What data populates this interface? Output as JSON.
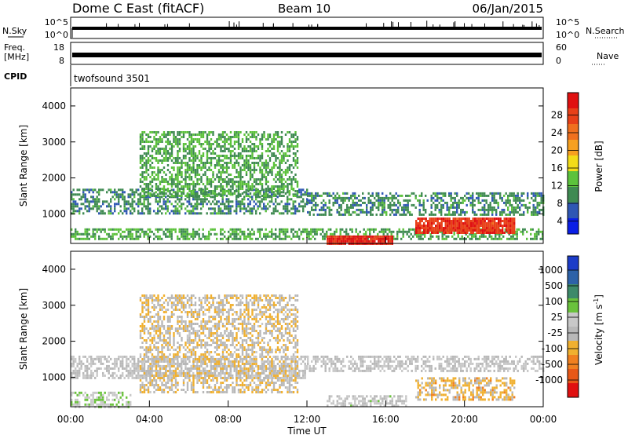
{
  "header": {
    "title": "Dome C East (fitACF)",
    "beam": "Beam 10",
    "date": "06/Jan/2015"
  },
  "noise_panel": {
    "left_label": "N.Sky",
    "left_ticks": [
      "10^5",
      "10^0"
    ],
    "right_label": "N.Search",
    "right_ticks": [
      "10^5",
      "10^0"
    ]
  },
  "freq_panel": {
    "left_label_1": "Freq.",
    "left_label_2": "[MHz]",
    "left_ticks": [
      "18",
      "8"
    ],
    "right_label": "Nave",
    "right_ticks": [
      "60",
      "0"
    ]
  },
  "cpid": {
    "label": "CPID",
    "value": "twofsound 3501"
  },
  "x_axis": {
    "label": "Time UT",
    "ticks": [
      "00:00",
      "04:00",
      "08:00",
      "12:00",
      "16:00",
      "20:00",
      "00:00"
    ]
  },
  "colors": {
    "power_scale": [
      "#0a1ee6",
      "#2f57b4",
      "#3f8a52",
      "#5cc23c",
      "#f2dc18",
      "#f6a020",
      "#f0701e",
      "#e84018",
      "#e01010"
    ],
    "velocity_scale": [
      "#1c3cc8",
      "#2d62a8",
      "#3d8a6a",
      "#6ac23c",
      "#c8c8c8",
      "#b8b8b8",
      "#f0b030",
      "#f08020",
      "#e85818",
      "#e01010"
    ]
  },
  "chart_data": [
    {
      "type": "heatmap",
      "name": "power-panel",
      "xlabel": "",
      "ylabel": "Slant Range [km]",
      "xlim": [
        0,
        24
      ],
      "ylim": [
        180,
        4500
      ],
      "yticks": [
        "1000",
        "2000",
        "3000",
        "4000"
      ],
      "colorbar": {
        "label": "Power [dB]",
        "ticks": [
          "4",
          "8",
          "12",
          "16",
          "20",
          "24",
          "28"
        ],
        "range": [
          0,
          30
        ]
      },
      "features": [
        {
          "t": [
            0.0,
            24.0
          ],
          "r": [
            300,
            600
          ],
          "value": 10
        },
        {
          "t": [
            0.0,
            12.0
          ],
          "r": [
            1000,
            1700
          ],
          "value": 8
        },
        {
          "t": [
            3.5,
            11.5
          ],
          "r": [
            1500,
            3300
          ],
          "value": 10
        },
        {
          "t": [
            13.0,
            16.3
          ],
          "r": [
            200,
            400
          ],
          "value": 27
        },
        {
          "t": [
            17.5,
            22.5
          ],
          "r": [
            450,
            900
          ],
          "value": 26
        },
        {
          "t": [
            12.0,
            24.0
          ],
          "r": [
            1000,
            1600
          ],
          "value": 8
        }
      ]
    },
    {
      "type": "heatmap",
      "name": "velocity-panel",
      "xlabel": "Time UT",
      "ylabel": "Slant Range [km]",
      "xlim": [
        0,
        24
      ],
      "ylim": [
        180,
        4500
      ],
      "yticks": [
        "1000",
        "2000",
        "3000",
        "4000"
      ],
      "colorbar": {
        "label": "Velocity [m s^-1]",
        "ticks": [
          "1000",
          "500",
          "100",
          "25",
          "-25",
          "-100",
          "-500",
          "-1000"
        ],
        "range": [
          -1000,
          1000
        ]
      },
      "features": [
        {
          "t": [
            0.0,
            3.0
          ],
          "r": [
            200,
            600
          ],
          "value": 150
        },
        {
          "t": [
            0.0,
            12.0
          ],
          "r": [
            1000,
            1600
          ],
          "value": 0
        },
        {
          "t": [
            3.5,
            11.5
          ],
          "r": [
            600,
            3300
          ],
          "value": -150
        },
        {
          "t": [
            13.0,
            17.0
          ],
          "r": [
            200,
            500
          ],
          "value": 30
        },
        {
          "t": [
            17.5,
            22.5
          ],
          "r": [
            400,
            1000
          ],
          "value": -250
        },
        {
          "t": [
            12.0,
            24.0
          ],
          "r": [
            1200,
            1600
          ],
          "value": 0
        }
      ]
    }
  ]
}
